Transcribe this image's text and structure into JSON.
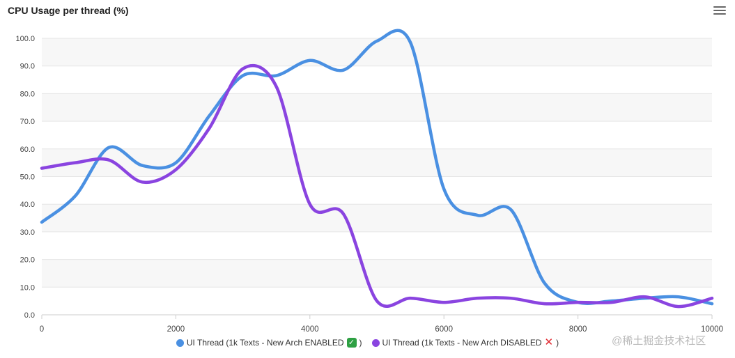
{
  "chart_data": {
    "type": "line",
    "title": "CPU Usage per thread (%)",
    "xlabel": "",
    "ylabel": "",
    "xlim": [
      0,
      10000
    ],
    "ylim": [
      0,
      100
    ],
    "x_ticks": [
      0,
      2000,
      4000,
      6000,
      8000,
      10000
    ],
    "y_ticks": [
      "0.0",
      "10.0",
      "20.0",
      "30.0",
      "40.0",
      "50.0",
      "60.0",
      "70.0",
      "80.0",
      "90.0",
      "100.0"
    ],
    "grid": true,
    "legend_position": "bottom",
    "series": [
      {
        "name": "UI Thread (1k Texts - New Arch ENABLED",
        "suffix": ")",
        "badge": "✓",
        "color": "#4a90e2",
        "x": [
          0,
          500,
          1000,
          1500,
          2000,
          2500,
          3000,
          3500,
          4000,
          4500,
          5000,
          5500,
          6000,
          6500,
          7000,
          7500,
          8000,
          8500,
          9000,
          9500,
          10000
        ],
        "values": [
          33.5,
          43,
          60.5,
          54,
          55,
          72,
          86.5,
          86.5,
          92,
          88.5,
          99,
          98.5,
          45.5,
          36,
          38,
          11.5,
          4.5,
          5,
          6,
          6.5,
          4
        ]
      },
      {
        "name": "UI Thread (1k Texts - New Arch DISABLED",
        "suffix": ")",
        "badge": "✕",
        "color": "#8a44e0",
        "x": [
          0,
          500,
          1000,
          1500,
          2000,
          2500,
          3000,
          3500,
          4000,
          4500,
          5000,
          5500,
          6000,
          6500,
          7000,
          7500,
          8000,
          8500,
          9000,
          9500,
          10000
        ],
        "values": [
          53,
          55,
          56,
          48,
          52.5,
          67.5,
          89,
          82.5,
          40,
          36.5,
          5,
          6,
          4.5,
          6,
          6,
          4,
          4.5,
          4.5,
          6.5,
          3,
          6
        ]
      }
    ]
  },
  "toolbar": {
    "menu_icon": "hamburger-menu-icon"
  },
  "watermark": "@稀土掘金技术社区"
}
